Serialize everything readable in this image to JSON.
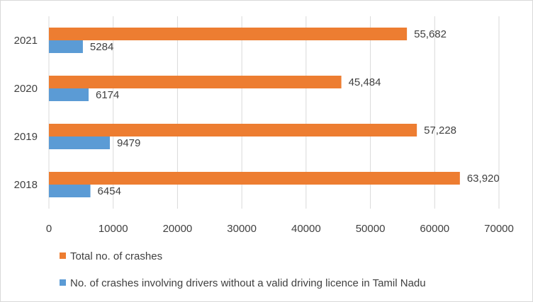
{
  "chart_data": {
    "type": "bar",
    "orientation": "horizontal",
    "categories": [
      "2018",
      "2019",
      "2020",
      "2021"
    ],
    "series": [
      {
        "name": "Total no. of crashes",
        "color": "#ed7d31",
        "values": [
          63920,
          57228,
          45484,
          55682
        ],
        "labels": [
          "63,920",
          "57,228",
          "45,484",
          "55,682"
        ]
      },
      {
        "name": "No. of crashes involving drivers without a valid driving licence in Tamil Nadu",
        "color": "#5b9bd5",
        "values": [
          6454,
          9479,
          6174,
          5284
        ],
        "labels": [
          "6454",
          "9479",
          "6174",
          "5284"
        ]
      }
    ],
    "xlim": [
      0,
      70000
    ],
    "xticks": [
      "0",
      "10000",
      "20000",
      "30000",
      "40000",
      "50000",
      "60000",
      "70000"
    ],
    "grid": true,
    "legend_position": "bottom"
  }
}
